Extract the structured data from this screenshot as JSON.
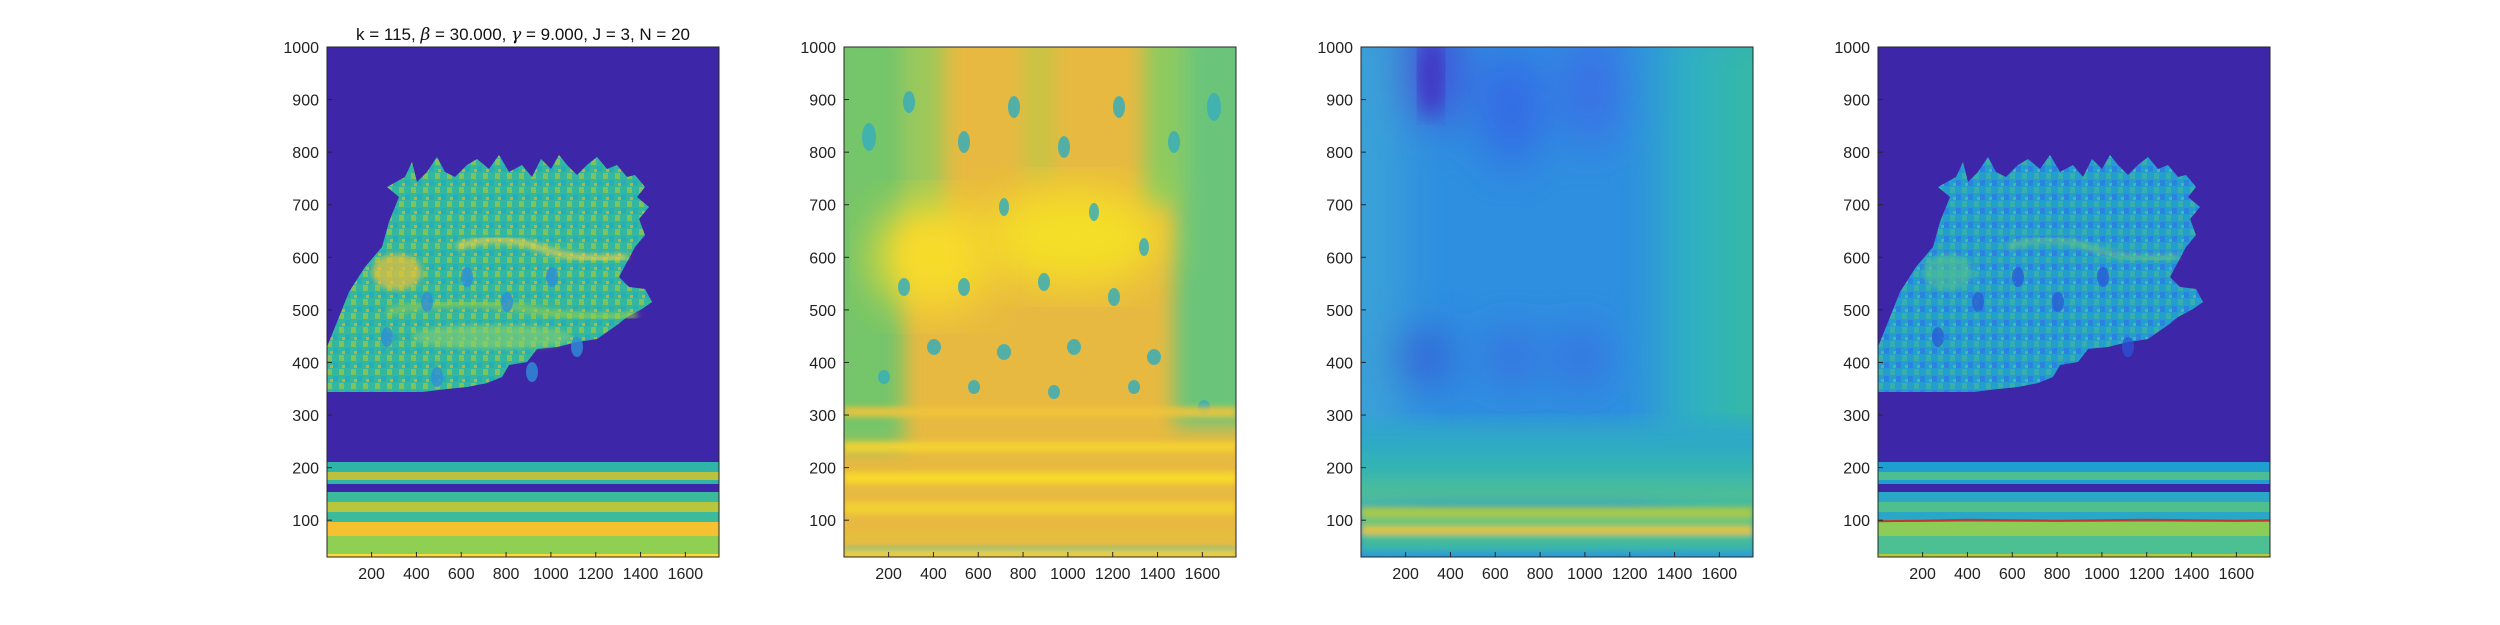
{
  "figure": {
    "title_parts": [
      "k = 115, ",
      "β",
      " = 30.000, ",
      "γ",
      " = 9.000, J = 3, N = 20"
    ]
  },
  "chart_data": [
    {
      "type": "heatmap",
      "panel": "original-spectrogram",
      "title": "k = 115, β = 30.000, γ = 9.000, J = 3, N = 20",
      "xlim": [
        1,
        1750
      ],
      "ylim": [
        30,
        1000
      ],
      "xticks": [
        200,
        400,
        600,
        800,
        1000,
        1200,
        1400,
        1600
      ],
      "yticks": [
        100,
        200,
        300,
        400,
        500,
        600,
        700,
        800,
        900,
        1000
      ],
      "colormap": "parula",
      "background_color": "#3e26a8",
      "features": {
        "bands_y": [
          90,
          110,
          140,
          165,
          185
        ],
        "canopy_y_range": [
          250,
          830
        ]
      }
    },
    {
      "type": "heatmap",
      "panel": "smoothed-energy",
      "xlim": [
        1,
        1750
      ],
      "ylim": [
        30,
        1000
      ],
      "xticks": [
        200,
        400,
        600,
        800,
        1000,
        1200,
        1400,
        1600
      ],
      "yticks": [
        100,
        200,
        300,
        400,
        500,
        600,
        700,
        800,
        900,
        1000
      ],
      "colormap": "parula",
      "features": {
        "hot_region_center": [
          600,
          580
        ],
        "low_band_y": [
          60,
          200
        ]
      }
    },
    {
      "type": "heatmap",
      "panel": "blurred-blue",
      "xlim": [
        1,
        1750
      ],
      "ylim": [
        30,
        1000
      ],
      "xticks": [
        200,
        400,
        600,
        800,
        1000,
        1200,
        1400,
        1600
      ],
      "yticks": [
        100,
        200,
        300,
        400,
        500,
        600,
        700,
        800,
        900,
        1000
      ],
      "colormap": "parula",
      "features": {
        "band_y": 100
      }
    },
    {
      "type": "heatmap",
      "panel": "reassigned-with-ridge",
      "xlim": [
        1,
        1750
      ],
      "ylim": [
        30,
        1000
      ],
      "xticks": [
        200,
        400,
        600,
        800,
        1000,
        1200,
        1400,
        1600
      ],
      "yticks": [
        100,
        200,
        300,
        400,
        500,
        600,
        700,
        800,
        900,
        1000
      ],
      "colormap": "parula",
      "background_color": "#3e26a8",
      "ridge_color": "#c0392b",
      "ridge": {
        "x": [
          1,
          200,
          400,
          600,
          800,
          1000,
          1200,
          1400,
          1600,
          1750
        ],
        "y": [
          98,
          99,
          101,
          100,
          99,
          100,
          101,
          100,
          99,
          100
        ]
      }
    }
  ]
}
